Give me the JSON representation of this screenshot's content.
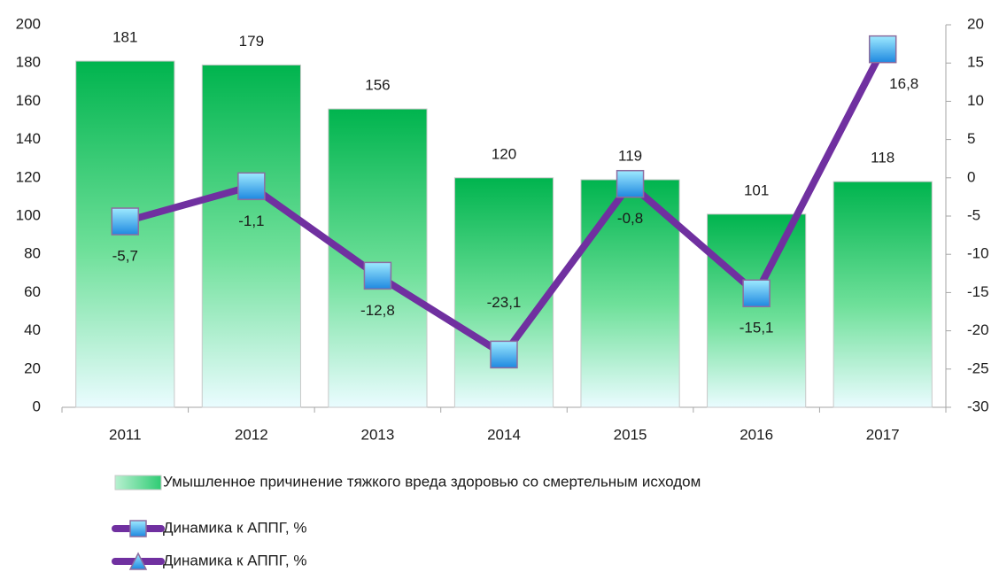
{
  "chart_data": {
    "type": "bar",
    "categories": [
      "2011",
      "2012",
      "2013",
      "2014",
      "2015",
      "2016",
      "2017"
    ],
    "series": [
      {
        "name": "Умышленное причинение тяжкого вреда здоровью со смертельным исходом",
        "type": "bar",
        "color": "#00b050",
        "values": [
          181,
          179,
          156,
          120,
          119,
          101,
          118
        ]
      },
      {
        "name": "Динамика к АППГ, %",
        "type": "line",
        "axis": "y2",
        "marker": "square",
        "color": "#7030a0",
        "values": [
          -5.7,
          -1.1,
          -12.8,
          -23.1,
          -0.8,
          -15.1,
          16.8
        ],
        "value_labels": [
          "-5,7",
          "-1,1",
          "-12,8",
          "-23,1",
          "-0,8",
          "-15,1",
          "16,8"
        ]
      },
      {
        "name": "Динамика к АППГ, %",
        "type": "line",
        "axis": "y2",
        "marker": "triangle",
        "color": "#7030a0",
        "values": [
          null,
          null,
          null,
          null,
          null,
          null,
          null
        ]
      }
    ],
    "ylim": [
      0,
      200
    ],
    "yticks": [
      0,
      20,
      40,
      60,
      80,
      100,
      120,
      140,
      160,
      180,
      200
    ],
    "y2lim": [
      -30,
      20
    ],
    "y2ticks": [
      -30,
      -25,
      -20,
      -15,
      -10,
      -5,
      0,
      5,
      10,
      15,
      20
    ],
    "grid": false,
    "legend": "bottom"
  }
}
